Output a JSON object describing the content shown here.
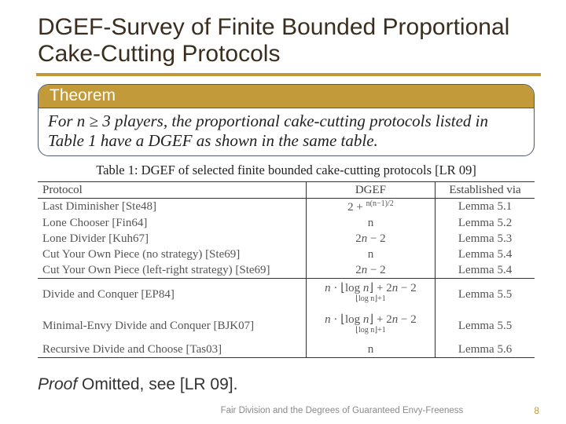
{
  "title": "DGEF-Survey of Finite Bounded Proportional Cake-Cutting Protocols",
  "accent_color": "#c29a3a",
  "box_border_color": "#4a5b6f",
  "theorem": {
    "header": "Theorem",
    "body": "For n ≥ 3 players, the proportional cake-cutting protocols listed in Table 1 have a DGEF as shown in the same table."
  },
  "table": {
    "caption": "Table 1: DGEF of selected finite bounded cake-cutting protocols [LR 09]",
    "columns": [
      "Protocol",
      "DGEF",
      "Established via"
    ],
    "rows": [
      {
        "protocol": "Last Diminisher [Ste48]",
        "dgef": "2 + n(n−1)/2",
        "est": "Lemma 5.1",
        "hline": false
      },
      {
        "protocol": "Lone Chooser [Fin64]",
        "dgef": "n",
        "est": "Lemma 5.2",
        "hline": false
      },
      {
        "protocol": "Lone Divider [Kuh67]",
        "dgef": "2n − 2",
        "est": "Lemma 5.3",
        "hline": false
      },
      {
        "protocol": "Cut Your Own Piece (no strategy) [Ste69]",
        "dgef": "n",
        "est": "Lemma 5.4",
        "hline": false
      },
      {
        "protocol": "Cut Your Own Piece (left-right strategy) [Ste69]",
        "dgef": "2n − 2",
        "est": "Lemma 5.4",
        "hline": true
      },
      {
        "protocol": "Divide and Conquer [EP84]",
        "dgef": "n · ⌊log n⌋ + 2n − 2^(⌊log n⌋+1)",
        "est": "Lemma 5.5",
        "hline": false
      },
      {
        "protocol": "Minimal-Envy Divide and Conquer [BJK07]",
        "dgef": "n · ⌊log n⌋ + 2n − 2^(⌊log n⌋+1)",
        "est": "Lemma 5.5",
        "hline": false
      },
      {
        "protocol": "Recursive Divide and Choose [Tas03]",
        "dgef": "n",
        "est": "Lemma 5.6",
        "hline": false
      }
    ]
  },
  "proof": {
    "label": "Proof",
    "text": "  Omitted, see [LR 09]."
  },
  "footer": {
    "text": "Fair Division and the Degrees of Guaranteed Envy-Freeness",
    "page": "8"
  },
  "fonts": {
    "title_family": "Gill Sans",
    "title_size_pt": 30,
    "body_family": "Times New Roman",
    "body_size_pt": 21,
    "table_size_pt": 15,
    "footer_size_pt": 11.5
  },
  "colors": {
    "text_primary": "#3b2e1f",
    "text_body": "#222222",
    "text_table": "#555555",
    "background": "#ffffff",
    "footer_text": "#8a8a8a"
  }
}
